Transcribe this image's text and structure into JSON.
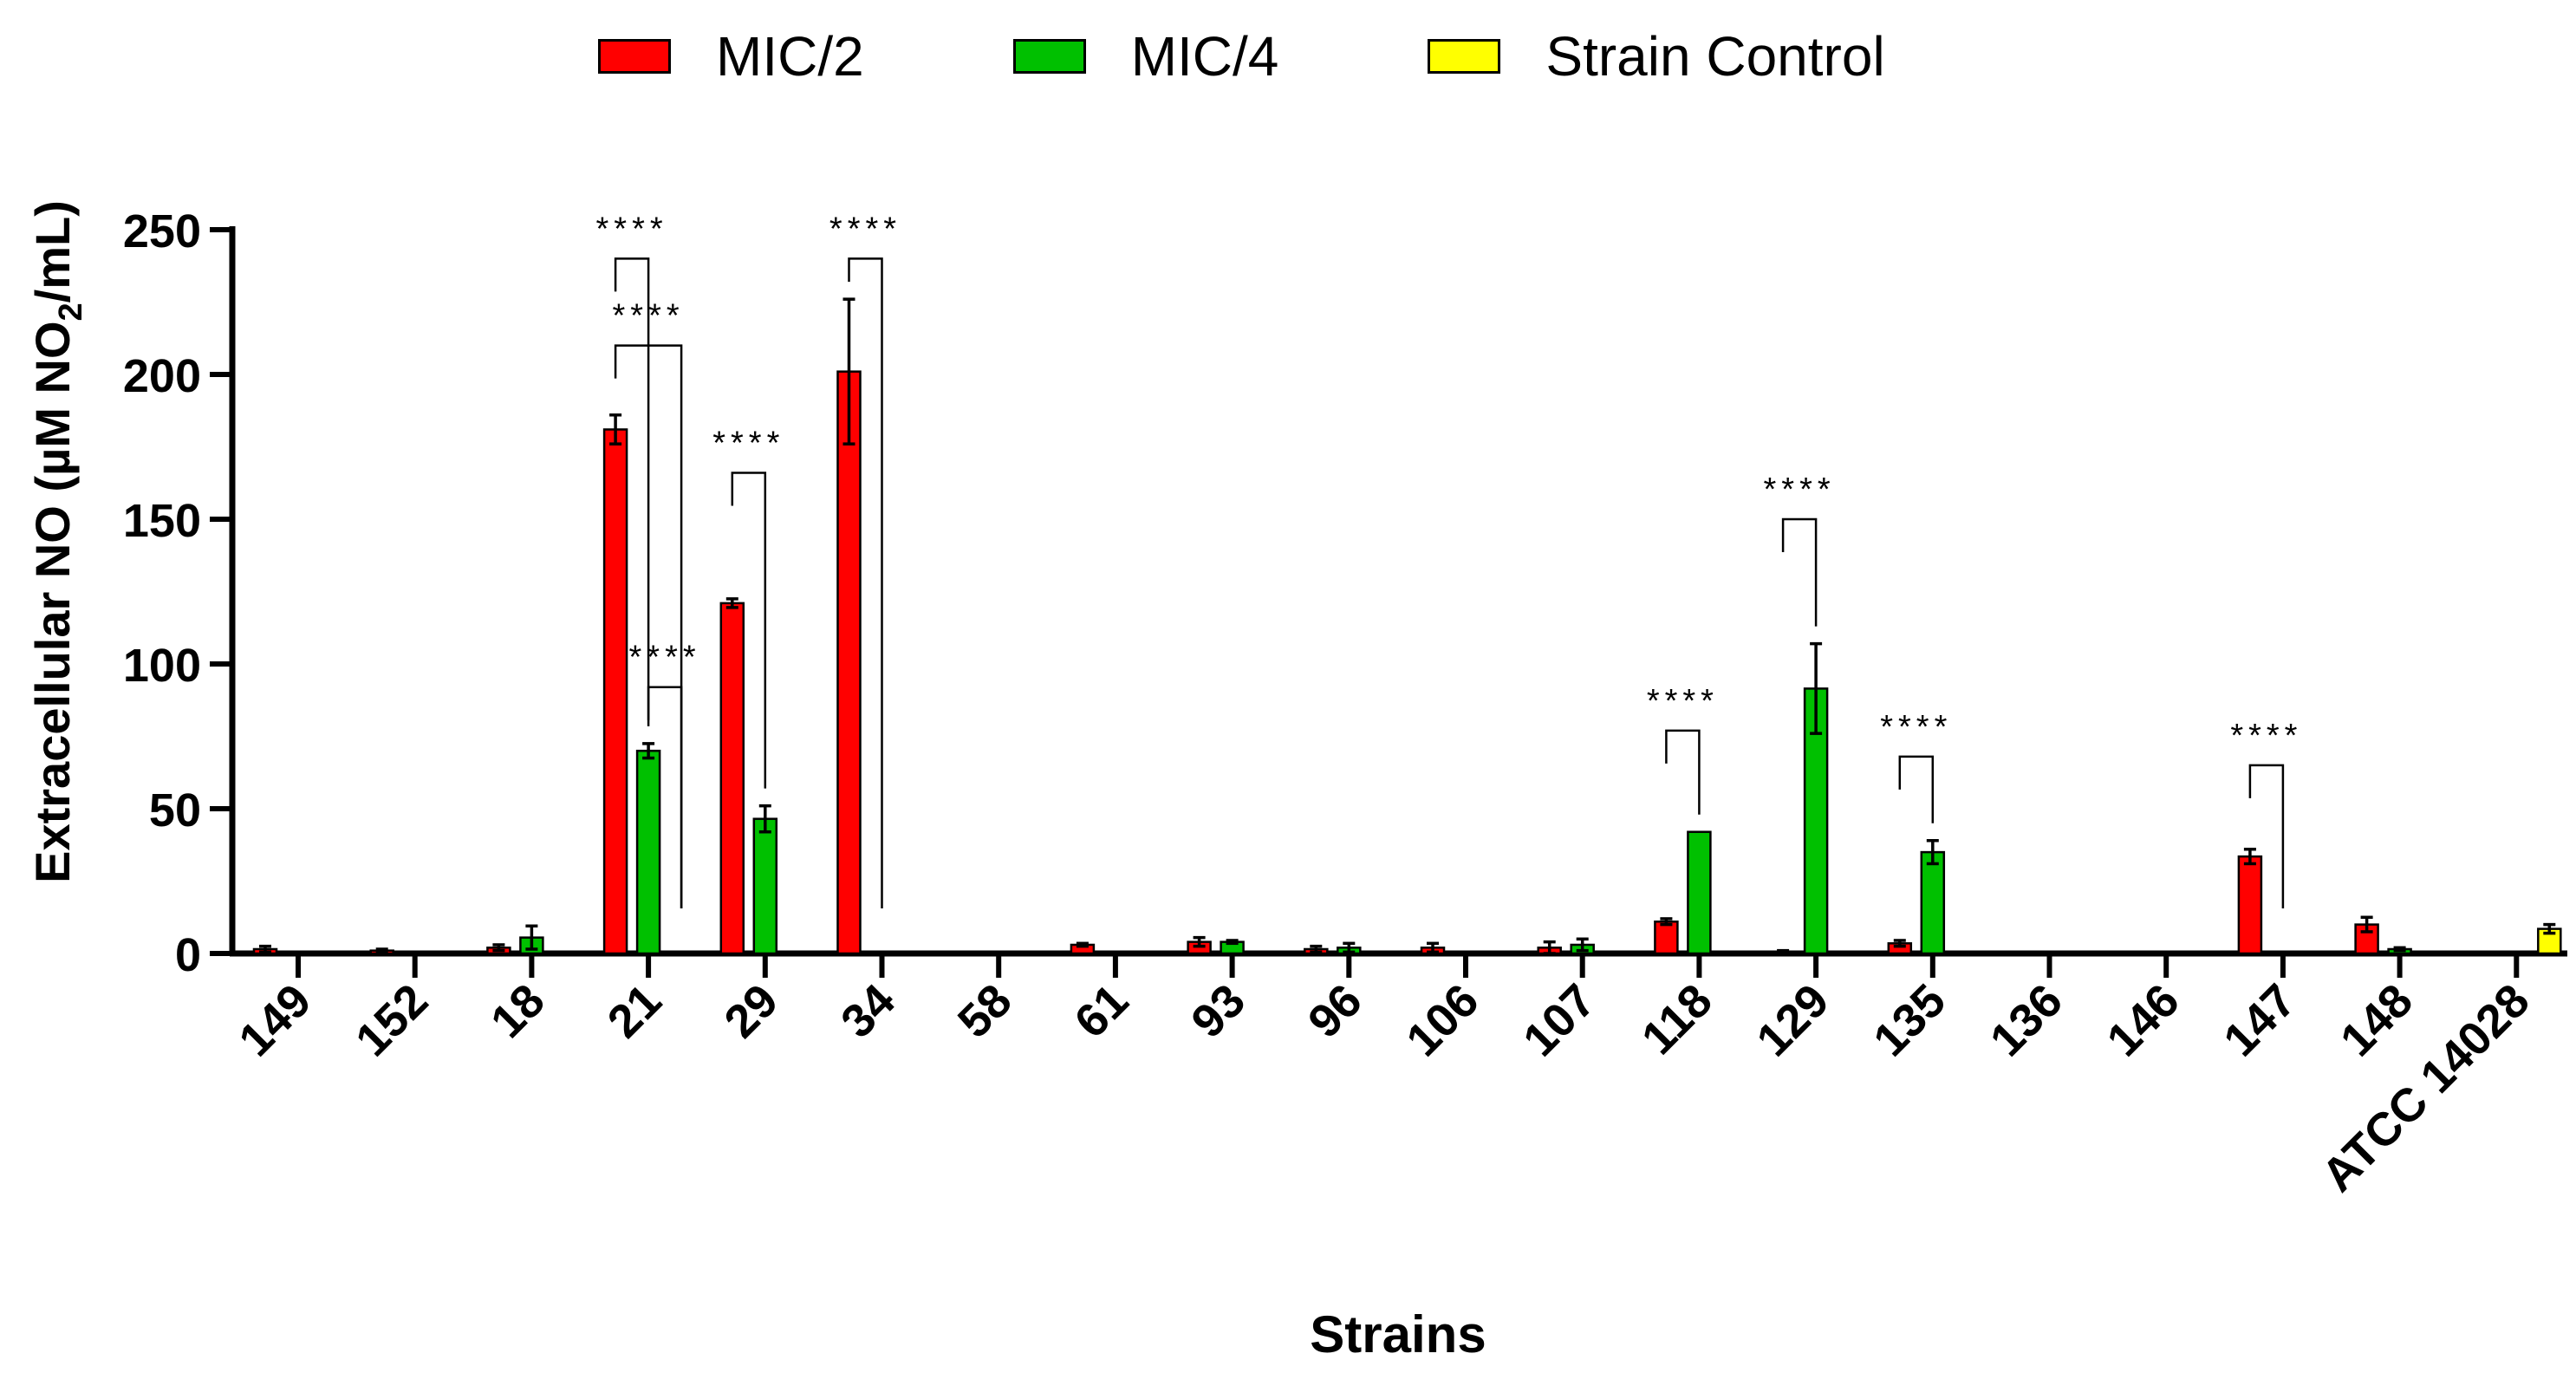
{
  "chart_data": {
    "type": "bar",
    "title": "",
    "xlabel": "Strains",
    "ylabel_main": "Extracellular NO (µM NO",
    "ylabel_sub": "2",
    "ylabel_tail": "/mL)",
    "ylim": [
      0,
      250
    ],
    "yticks": [
      0,
      50,
      100,
      150,
      200,
      250
    ],
    "categories": [
      "149",
      "152",
      "18",
      "21",
      "29",
      "34",
      "58",
      "61",
      "93",
      "96",
      "106",
      "107",
      "118",
      "129",
      "135",
      "136",
      "146",
      "147",
      "148",
      "ATCC 14028"
    ],
    "series": [
      {
        "name": "MIC/2",
        "color": "#ff0000",
        "values": [
          1.5,
          1,
          2,
          181,
          121,
          201,
          0,
          3,
          4,
          1.5,
          2,
          2,
          11,
          0.5,
          3.5,
          0,
          0,
          33.5,
          10,
          0.5
        ],
        "errors": [
          1,
          0.5,
          1,
          5,
          1.5,
          25,
          0,
          0.5,
          1.5,
          1,
          1.5,
          2,
          1,
          0.5,
          1,
          0,
          0,
          2.5,
          2.5,
          0
        ]
      },
      {
        "name": "MIC/4",
        "color": "#00c000",
        "values": [
          0,
          0,
          5.5,
          70,
          46.5,
          0,
          0,
          0,
          4,
          2,
          0,
          3,
          42,
          91.5,
          35,
          0,
          0,
          0,
          1.5,
          0
        ],
        "errors": [
          0,
          0,
          4,
          2.5,
          4.5,
          0,
          0,
          0,
          0.5,
          1.5,
          0,
          2,
          0,
          15.5,
          4,
          0,
          0,
          0,
          0.5,
          0
        ]
      },
      {
        "name": "Strain Control",
        "color": "#ffff00",
        "values": [
          0,
          0,
          0,
          0,
          0,
          0,
          0,
          0,
          0,
          0,
          0,
          0,
          0,
          0,
          0,
          0,
          0,
          0,
          0,
          8.5
        ],
        "errors": [
          0,
          0,
          0,
          0,
          0,
          0,
          0,
          0,
          0,
          0,
          0,
          0,
          0,
          0,
          0,
          0,
          0,
          0,
          0,
          1.5
        ]
      }
    ],
    "significance": [
      {
        "label": "****",
        "category_index": 3,
        "from_series": 0,
        "to_series": 2,
        "level": 210
      },
      {
        "label": "****",
        "category_index": 3,
        "from_series": 0,
        "to_series": 1,
        "level": 240
      },
      {
        "label": "****",
        "category_index": 3,
        "from_series": 1,
        "to_series": 2,
        "level": 92
      },
      {
        "label": "****",
        "category_index": 4,
        "from_series": 0,
        "to_series": 1,
        "level": 166
      },
      {
        "label": "****",
        "category_index": 5,
        "from_series": 0,
        "to_series": 1,
        "level": 240
      },
      {
        "label": "****",
        "category_index": 12,
        "from_series": 0,
        "to_series": 1,
        "level": 77
      },
      {
        "label": "****",
        "category_index": 13,
        "from_series": 0,
        "to_series": 1,
        "level": 150
      },
      {
        "label": "****",
        "category_index": 14,
        "from_series": 0,
        "to_series": 1,
        "level": 68
      },
      {
        "label": "****",
        "category_index": 17,
        "from_series": 0,
        "to_series": 1,
        "level": 65
      }
    ],
    "legend": "top-center"
  }
}
